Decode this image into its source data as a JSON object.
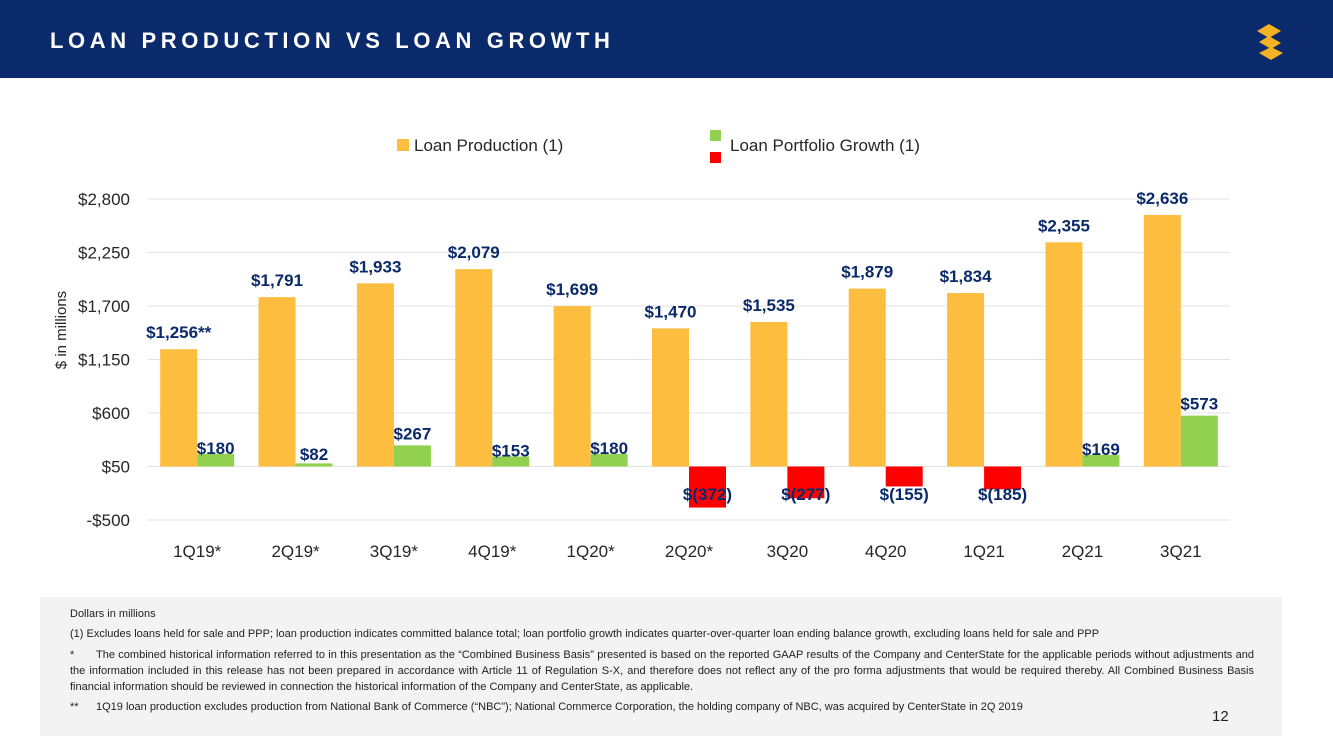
{
  "header": {
    "title": "LOAN PRODUCTION VS LOAN GROWTH",
    "color": "#0a2a6b",
    "logo_icon": "logo-s-icon",
    "logo_color": "#f5b324"
  },
  "chart_data": {
    "type": "bar",
    "title": "",
    "xlabel": "",
    "ylabel": "$ in millions",
    "ylim": [
      -500,
      2800
    ],
    "yticks": [
      -500,
      50,
      600,
      1150,
      1700,
      2250,
      2800
    ],
    "ytick_labels": [
      "-$500",
      "$50",
      "$600",
      "$1,150",
      "$1,700",
      "$2,250",
      "$2,800"
    ],
    "grid": true,
    "legend_position": "top",
    "categories": [
      "1Q19*",
      "2Q19*",
      "3Q19*",
      "4Q19*",
      "1Q20*",
      "2Q20*",
      "3Q20",
      "4Q20",
      "1Q21",
      "2Q21",
      "3Q21"
    ],
    "series": [
      {
        "name": "Loan Production (1)",
        "color": "#fdbd3e",
        "values": [
          1256,
          1791,
          1933,
          2079,
          1699,
          1470,
          1535,
          1879,
          1834,
          2355,
          2636
        ],
        "labels": [
          "$1,256**",
          "$1,791",
          "$1,933",
          "$2,079",
          "$1,699",
          "$1,470",
          "$1,535",
          "$1,879",
          "$1,834",
          "$2,355",
          "$2,636"
        ]
      },
      {
        "name": "Loan Portfolio Growth (1)",
        "color_positive": "#92d050",
        "color_negative": "#ff0000",
        "values": [
          180,
          82,
          267,
          153,
          180,
          -372,
          -277,
          -155,
          -185,
          169,
          573
        ],
        "labels": [
          "$180",
          "$82",
          "$267",
          "$153",
          "$180",
          "$(372)",
          "$(277)",
          "$(155)",
          "$(185)",
          "$169",
          "$573"
        ]
      }
    ],
    "label_color": "#0a2a6b"
  },
  "footnotes": {
    "line1": "Dollars in millions",
    "line2": "(1) Excludes loans held for sale and PPP; loan production indicates committed balance total; loan portfolio growth indicates quarter-over-quarter loan ending balance growth, excluding loans held for sale and PPP",
    "line3_mark": "*",
    "line3": "The combined historical information referred to in this presentation as the “Combined Business Basis” presented is based on the reported GAAP results of the Company and CenterState for the applicable periods without adjustments and the information included in this release has not been prepared in accordance with Article 11 of Regulation S-X, and therefore does not reflect any of the pro forma adjustments that would be required thereby.  All Combined Business Basis financial information should be reviewed in connection the historical information of the Company and CenterState, as applicable.",
    "line4_mark": "**",
    "line4": "1Q19 loan production excludes production from National Bank of Commerce (“NBC”); National Commerce Corporation, the holding company of NBC, was acquired by CenterState in 2Q 2019"
  },
  "page_number": "12"
}
